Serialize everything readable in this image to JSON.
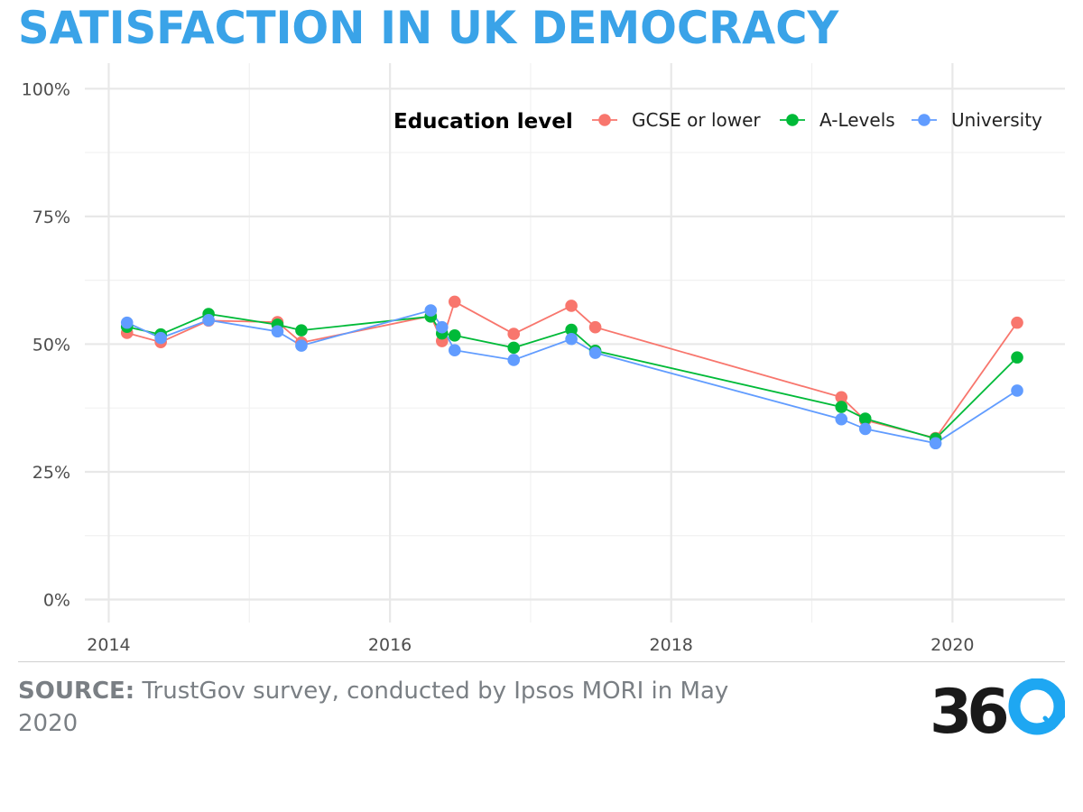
{
  "header": {
    "title": "SATISFACTION IN UK DEMOCRACY"
  },
  "footer": {
    "source_label": "SOURCE:",
    "source_text": "TrustGov survey, conducted by Ipsos MORI in May 2020",
    "logo_text": "360"
  },
  "colors": {
    "title": "#3aa3e8",
    "gcse": "#f8766d",
    "alevels": "#00ba38",
    "university": "#619cff",
    "logo_dark": "#1a1a1a",
    "logo_blue": "#1ea7f2"
  },
  "chart_data": {
    "type": "line",
    "title": "SATISFACTION IN UK DEMOCRACY",
    "xlabel": "",
    "ylabel": "",
    "x_ticks": [
      "2014",
      "2016",
      "2018",
      "2020"
    ],
    "x_tick_values": [
      2014,
      2016,
      2018,
      2020
    ],
    "y_ticks": [
      "0%",
      "25%",
      "50%",
      "75%",
      "100%"
    ],
    "y_tick_values": [
      0,
      25,
      50,
      75,
      100
    ],
    "xlim": [
      2013.83,
      2020.8
    ],
    "ylim": [
      -4.5,
      105
    ],
    "grid": true,
    "legend": {
      "title": "Education level",
      "position": "top-right"
    },
    "series": [
      {
        "name": "GCSE or lower",
        "color_key": "gcse",
        "x": [
          2014.13,
          2014.37,
          2014.71,
          2015.2,
          2015.37,
          2016.29,
          2016.37,
          2016.46,
          2016.88,
          2017.29,
          2017.46,
          2019.21,
          2019.38,
          2019.88,
          2020.46
        ],
        "y": [
          52.2,
          50.4,
          54.6,
          54.3,
          50.3,
          55.5,
          50.6,
          58.3,
          52.0,
          57.5,
          53.3,
          39.6,
          35.1,
          31.6,
          54.2
        ]
      },
      {
        "name": "A-Levels",
        "color_key": "alevels",
        "x": [
          2014.13,
          2014.37,
          2014.71,
          2015.2,
          2015.37,
          2016.29,
          2016.37,
          2016.46,
          2016.88,
          2017.29,
          2017.46,
          2019.21,
          2019.38,
          2019.88,
          2020.46
        ],
        "y": [
          53.4,
          51.9,
          55.9,
          53.8,
          52.7,
          55.4,
          52.1,
          51.7,
          49.3,
          52.8,
          48.7,
          37.7,
          35.4,
          31.5,
          47.4
        ]
      },
      {
        "name": "University",
        "color_key": "university",
        "x": [
          2014.13,
          2014.37,
          2014.71,
          2015.2,
          2015.37,
          2016.29,
          2016.37,
          2016.46,
          2016.88,
          2017.29,
          2017.46,
          2019.21,
          2019.38,
          2019.88,
          2020.46
        ],
        "y": [
          54.2,
          51.2,
          54.7,
          52.5,
          49.7,
          56.6,
          53.3,
          48.8,
          46.9,
          51.0,
          48.3,
          35.3,
          33.4,
          30.6,
          40.9
        ]
      }
    ]
  }
}
